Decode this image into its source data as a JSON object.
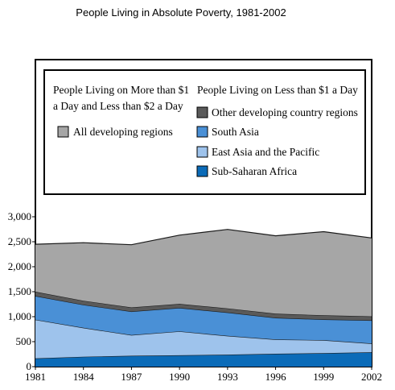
{
  "chart_data": {
    "type": "area",
    "stacked": true,
    "title": "People Living in Absolute Poverty, 1981-2002",
    "xlabel": "",
    "ylabel": "",
    "x": [
      1981,
      1984,
      1987,
      1990,
      1993,
      1996,
      1999,
      2002
    ],
    "x_tick_labels": [
      "1981",
      "1984",
      "1987",
      "1990",
      "1993",
      "1996",
      "1999",
      "2002"
    ],
    "y_ticks": [
      0,
      500,
      1000,
      1500,
      2000,
      2500,
      3000
    ],
    "y_tick_labels": [
      "0",
      "500",
      "1,000",
      "1,500",
      "2,000",
      "2,500",
      "3,000"
    ],
    "ylim": [
      0,
      3000
    ],
    "grid": false,
    "legend": {
      "placement": "top",
      "left_heading": "People Living on More than $1 a Day and Less than $2 a Day",
      "left_heading_lines": [
        "People Living on More than $1",
        "a Day and Less than $2 a Day"
      ],
      "right_heading": "People Living on Less than $1 a Day"
    },
    "series": [
      {
        "name": "Sub-Saharan Africa",
        "group": "less than $1",
        "color": "#0b6bb8",
        "values": [
          165,
          198,
          218,
          227,
          241,
          258,
          270,
          288
        ]
      },
      {
        "name": "East Asia and the Pacific",
        "group": "less than $1",
        "color": "#9ec3ec",
        "values": [
          775,
          580,
          415,
          480,
          375,
          285,
          260,
          175
        ]
      },
      {
        "name": "South Asia",
        "group": "less than $1",
        "color": "#4a90d6",
        "values": [
          475,
          460,
          472,
          470,
          468,
          435,
          415,
          465
        ]
      },
      {
        "name": "Other developing country regions",
        "group": "less than $1",
        "color": "#5a5a5a",
        "values": [
          85,
          82,
          80,
          80,
          82,
          82,
          82,
          78
        ]
      },
      {
        "name": "All developing regions",
        "group": "$1 to $2",
        "color": "#a6a6a6",
        "values": [
          950,
          1160,
          1255,
          1375,
          1580,
          1560,
          1675,
          1570
        ]
      }
    ]
  }
}
